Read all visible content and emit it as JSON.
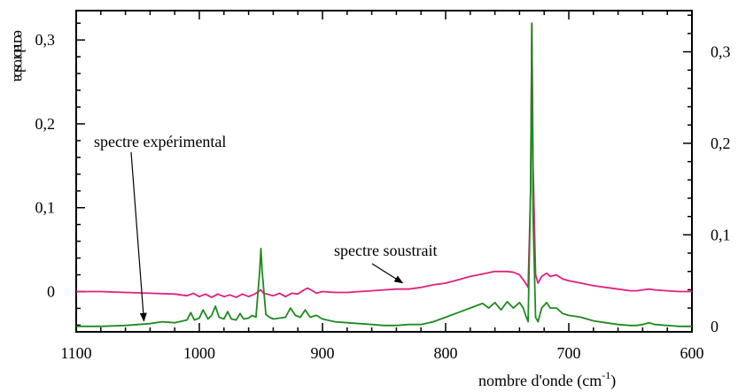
{
  "chart_data": {
    "type": "line",
    "title": "",
    "xlabel": "nombre d'onde (cm",
    "xlabel_sup": "-1",
    "xlabel_close": ")",
    "ylabel_chars": [
      "a",
      "b",
      "s",
      "o",
      "r",
      "b",
      "a",
      "n",
      "c",
      "e"
    ],
    "xlim": [
      1100,
      600
    ],
    "ylim_left": [
      -0.048,
      0.335
    ],
    "ylim_right": [
      -0.006,
      0.345
    ],
    "x_ticks": [
      1100,
      1000,
      900,
      800,
      700,
      600
    ],
    "x_tick_labels": [
      "1100",
      "1000",
      "900",
      "800",
      "700",
      "600"
    ],
    "y_left_ticks": [
      0,
      0.1,
      0.2,
      0.3
    ],
    "y_left_tick_labels": [
      "0",
      "0,1",
      "0,2",
      "0,3"
    ],
    "y_right_ticks": [
      0,
      0.1,
      0.2,
      0.3
    ],
    "y_right_tick_labels": [
      "0",
      "0,1",
      "0,2",
      "0,3"
    ],
    "grid": false,
    "annotations": [
      {
        "text": "spectre expérimental",
        "arrow_target_x": 1045,
        "arrow_target_y": -0.035
      },
      {
        "text": "spectre soustrait",
        "arrow_target_x": 835,
        "arrow_target_y": 0.004
      }
    ],
    "series": [
      {
        "color": "#e0217e",
        "axis": "left",
        "x": [
          1100,
          1080,
          1060,
          1040,
          1020,
          1010,
          1005,
          1000,
          995,
          990,
          985,
          980,
          975,
          970,
          965,
          960,
          955,
          952,
          950,
          948,
          945,
          940,
          935,
          930,
          925,
          920,
          915,
          912,
          908,
          905,
          900,
          890,
          880,
          870,
          860,
          850,
          840,
          830,
          820,
          810,
          800,
          790,
          780,
          770,
          760,
          750,
          745,
          740,
          737,
          735,
          733,
          731,
          730,
          729,
          727,
          725,
          722,
          718,
          715,
          710,
          705,
          700,
          690,
          680,
          670,
          660,
          650,
          645,
          640,
          635,
          630,
          620,
          610,
          600
        ],
        "y": [
          0,
          0,
          -0.001,
          -0.002,
          -0.003,
          -0.005,
          -0.002,
          -0.006,
          -0.003,
          -0.007,
          -0.003,
          -0.006,
          -0.004,
          -0.007,
          -0.003,
          -0.006,
          -0.003,
          0,
          0.002,
          -0.002,
          -0.003,
          -0.005,
          -0.002,
          -0.006,
          -0.002,
          -0.003,
          0.002,
          0.004,
          0.001,
          -0.002,
          0,
          -0.001,
          -0.001,
          0,
          0.001,
          0.002,
          0.003,
          0.003,
          0.005,
          0.008,
          0.01,
          0.014,
          0.018,
          0.021,
          0.024,
          0.024,
          0.023,
          0.02,
          0.014,
          0.01,
          0.005,
          0.12,
          0.32,
          0.15,
          0.02,
          0.01,
          0.018,
          0.022,
          0.018,
          0.02,
          0.015,
          0.013,
          0.01,
          0.007,
          0.005,
          0.003,
          0.001,
          0.001,
          0.002,
          0.003,
          0.002,
          0.001,
          0,
          0
        ]
      },
      {
        "color": "#1f8a1f",
        "axis": "right",
        "x": [
          1100,
          1080,
          1060,
          1040,
          1030,
          1020,
          1010,
          1007,
          1004,
          1000,
          997,
          993,
          990,
          987,
          984,
          980,
          977,
          974,
          970,
          967,
          964,
          960,
          957,
          954,
          951,
          950,
          949,
          946,
          943,
          940,
          935,
          930,
          926,
          922,
          918,
          914,
          910,
          905,
          900,
          890,
          880,
          870,
          860,
          850,
          840,
          830,
          820,
          810,
          800,
          790,
          780,
          770,
          765,
          760,
          755,
          750,
          745,
          740,
          737,
          735,
          733,
          731,
          730,
          729,
          727,
          725,
          722,
          718,
          715,
          710,
          705,
          700,
          690,
          680,
          670,
          660,
          650,
          645,
          640,
          635,
          630,
          620,
          610,
          600
        ],
        "y": [
          0,
          0,
          0.001,
          0.003,
          0.005,
          0.004,
          0.007,
          0.015,
          0.007,
          0.009,
          0.018,
          0.008,
          0.012,
          0.022,
          0.01,
          0.008,
          0.016,
          0.008,
          0.007,
          0.014,
          0.008,
          0.009,
          0.012,
          0.01,
          0.06,
          0.085,
          0.06,
          0.013,
          0.01,
          0.008,
          0.009,
          0.01,
          0.02,
          0.012,
          0.01,
          0.018,
          0.01,
          0.012,
          0.008,
          0.005,
          0.004,
          0.003,
          0.002,
          0.001,
          0.001,
          0.002,
          0.002,
          0.005,
          0.01,
          0.015,
          0.02,
          0.025,
          0.02,
          0.026,
          0.018,
          0.027,
          0.02,
          0.026,
          0.02,
          0.012,
          0.005,
          0.15,
          0.33,
          0.12,
          0.01,
          0.005,
          0.02,
          0.026,
          0.02,
          0.02,
          0.014,
          0.012,
          0.01,
          0.006,
          0.004,
          0.002,
          0.001,
          0.001,
          0.002,
          0.004,
          0.002,
          0.001,
          0,
          0
        ]
      }
    ]
  }
}
